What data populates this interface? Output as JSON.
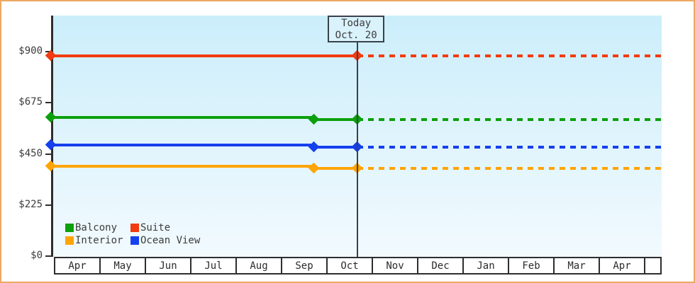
{
  "frame": {
    "border_color": "#eda963",
    "background": "#ffffff"
  },
  "chart_data": {
    "type": "line",
    "title": "",
    "y_axis": {
      "range": [
        0,
        900
      ],
      "ticks": [
        {
          "value": 0,
          "label": "$0"
        },
        {
          "value": 225,
          "label": "$225"
        },
        {
          "value": 450,
          "label": "$450"
        },
        {
          "value": 675,
          "label": "$675"
        },
        {
          "value": 900,
          "label": "$900"
        }
      ]
    },
    "x_axis": {
      "months": [
        "Apr",
        "May",
        "Jun",
        "Jul",
        "Aug",
        "Sep",
        "Oct",
        "Nov",
        "Dec",
        "Jan",
        "Feb",
        "Mar",
        "Apr"
      ]
    },
    "today": {
      "line1": "Today",
      "line2": "Oct. 20",
      "month_index": 6,
      "month_fraction": 0.69
    },
    "series": [
      {
        "name": "Suite",
        "color": "#f23b10",
        "points": [
          {
            "month_index": 0,
            "fraction": 0,
            "value": 880
          }
        ],
        "projected_value": 880
      },
      {
        "name": "Balcony",
        "color": "#0ca00c",
        "points": [
          {
            "month_index": 0,
            "fraction": 0,
            "value": 610
          },
          {
            "month_index": 5,
            "fraction": 0.73,
            "value": 600
          }
        ],
        "projected_value": 600
      },
      {
        "name": "Ocean View",
        "color": "#1540ee",
        "points": [
          {
            "month_index": 0,
            "fraction": 0,
            "value": 490
          },
          {
            "month_index": 5,
            "fraction": 0.73,
            "value": 480
          }
        ],
        "projected_value": 480
      },
      {
        "name": "Interior",
        "color": "#ffa405",
        "points": [
          {
            "month_index": 0,
            "fraction": 0,
            "value": 395
          },
          {
            "month_index": 5,
            "fraction": 0.73,
            "value": 385
          }
        ],
        "projected_value": 385
      }
    ],
    "legend": {
      "rows": [
        [
          "Balcony",
          "Suite"
        ],
        [
          "Interior",
          "Ocean View"
        ]
      ]
    },
    "layout_hints": {
      "grid": false,
      "legend_position": "bottom-left",
      "projection_style": "dashed"
    }
  }
}
